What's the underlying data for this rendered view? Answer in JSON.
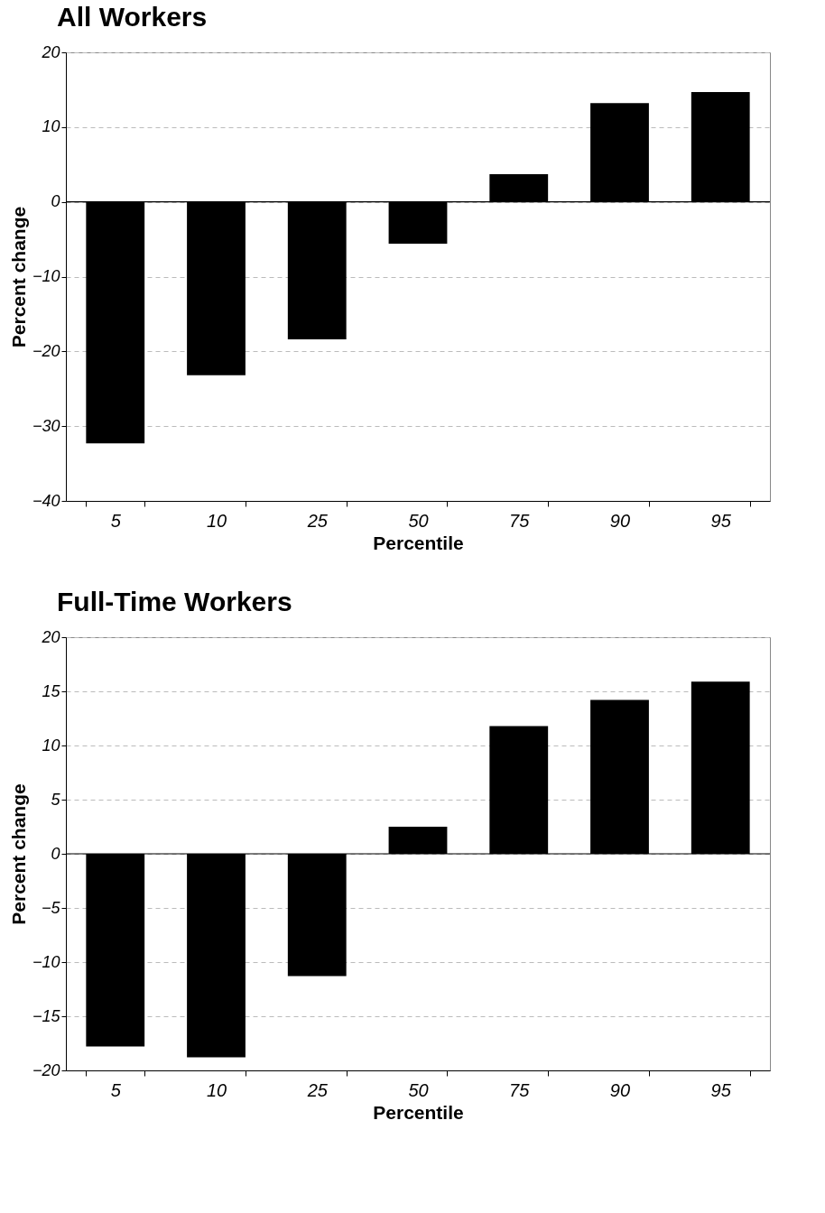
{
  "chart_data": [
    {
      "type": "bar",
      "title": "All Workers",
      "xlabel": "Percentile",
      "ylabel": "Percent change",
      "categories": [
        "5",
        "10",
        "25",
        "50",
        "75",
        "90",
        "95"
      ],
      "values": [
        -32.3,
        -23.2,
        -18.4,
        -5.6,
        3.7,
        13.2,
        14.7
      ],
      "color": "#000000",
      "ylim": [
        -40,
        20
      ],
      "yticks": [
        -40,
        -30,
        -20,
        -10,
        0,
        10,
        20
      ],
      "grid": "y",
      "ref_lines": [
        {
          "axis": "y",
          "value": 0,
          "color": "#000000"
        }
      ]
    },
    {
      "type": "bar",
      "title": "Full-Time Workers",
      "xlabel": "Percentile",
      "ylabel": "Percent change",
      "categories": [
        "5",
        "10",
        "25",
        "50",
        "75",
        "90",
        "95"
      ],
      "values": [
        -17.8,
        -18.8,
        -11.3,
        2.5,
        11.8,
        14.2,
        15.9
      ],
      "color": "#000000",
      "ylim": [
        -20,
        20
      ],
      "yticks": [
        -20,
        -15,
        -10,
        -5,
        0,
        5,
        10,
        15,
        20
      ],
      "grid": "y",
      "ref_lines": [
        {
          "axis": "y",
          "value": 0,
          "color": "#000000"
        }
      ]
    }
  ]
}
